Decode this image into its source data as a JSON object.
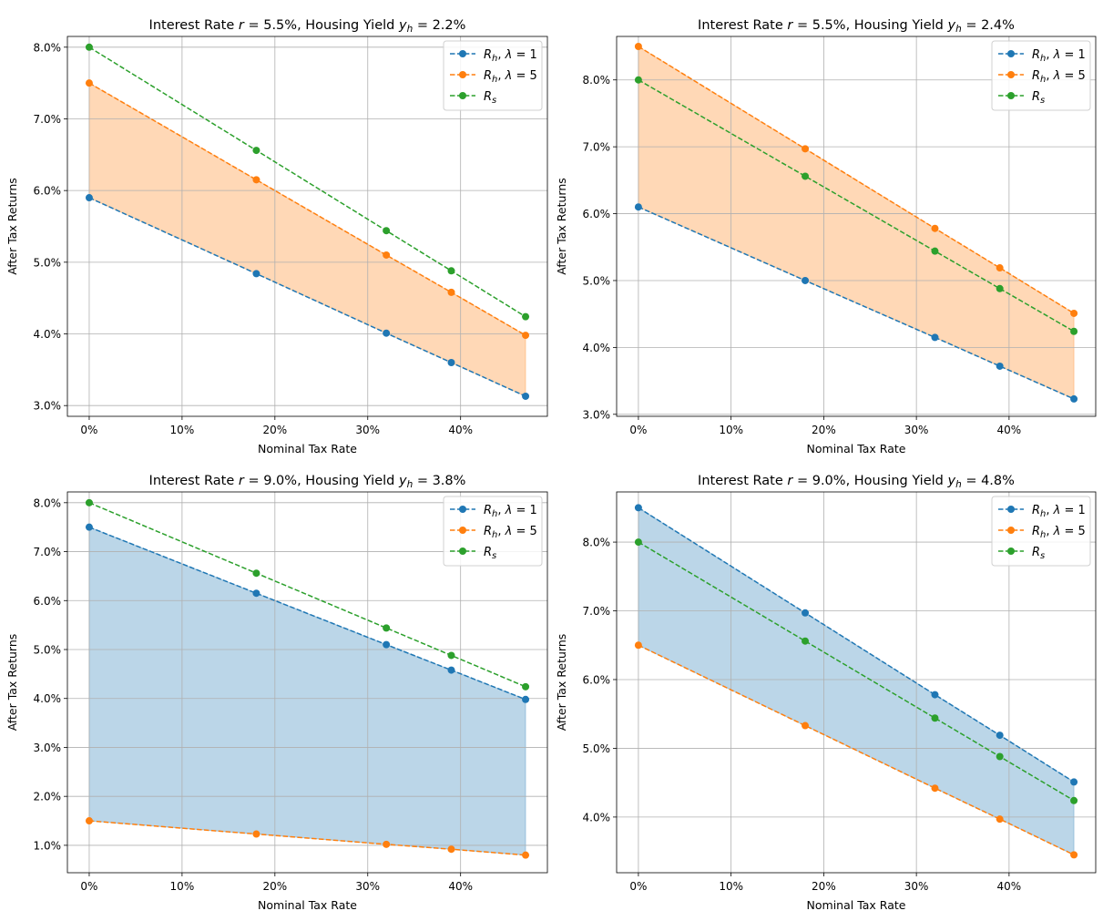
{
  "chart_data": [
    {
      "type": "line",
      "title": "Interest Rate r = 5.5%, Housing Yield y_h = 2.2%",
      "interest_rate": "5.5%",
      "housing_yield": "2.2%",
      "xlabel": "Nominal Tax Rate",
      "ylabel": "After Tax Returns",
      "x": [
        0,
        18,
        32,
        39,
        47
      ],
      "xlim": [
        -2.35,
        49.35
      ],
      "xticks": [
        "0%",
        "10%",
        "20%",
        "30%",
        "40%"
      ],
      "ylim": [
        2.85,
        8.15
      ],
      "yticks": [
        "3.0%",
        "4.0%",
        "5.0%",
        "6.0%",
        "7.0%",
        "8.0%"
      ],
      "grid": true,
      "legend": "top-right",
      "fill_between": "R_h, λ = 1 and R_h, λ = 5",
      "fill_color": "#ff7f0e",
      "series": [
        {
          "name": "R_h, λ = 1",
          "color": "#1f77b4",
          "values": [
            5.9,
            4.84,
            4.01,
            3.6,
            3.13
          ]
        },
        {
          "name": "R_h, λ = 5",
          "color": "#ff7f0e",
          "values": [
            7.5,
            6.15,
            5.1,
            4.58,
            3.98
          ]
        },
        {
          "name": "R_s",
          "color": "#2ca02c",
          "values": [
            8.0,
            6.56,
            5.44,
            4.88,
            4.24
          ]
        }
      ]
    },
    {
      "type": "line",
      "title": "Interest Rate r = 5.5%, Housing Yield y_h = 2.4%",
      "interest_rate": "5.5%",
      "housing_yield": "2.4%",
      "xlabel": "Nominal Tax Rate",
      "ylabel": "After Tax Returns",
      "x": [
        0,
        18,
        32,
        39,
        47
      ],
      "xlim": [
        -2.35,
        49.35
      ],
      "xticks": [
        "0%",
        "10%",
        "20%",
        "30%",
        "40%"
      ],
      "ylim": [
        2.97,
        8.65
      ],
      "yticks": [
        "3.0%",
        "4.0%",
        "5.0%",
        "6.0%",
        "7.0%",
        "8.0%"
      ],
      "grid": true,
      "legend": "top-right",
      "fill_between": "R_h, λ = 1 and R_h, λ = 5",
      "fill_color": "#ff7f0e",
      "series": [
        {
          "name": "R_h, λ = 1",
          "color": "#1f77b4",
          "values": [
            6.1,
            5.0,
            4.15,
            3.72,
            3.23
          ]
        },
        {
          "name": "R_h, λ = 5",
          "color": "#ff7f0e",
          "values": [
            8.5,
            6.97,
            5.78,
            5.19,
            4.51
          ]
        },
        {
          "name": "R_s",
          "color": "#2ca02c",
          "values": [
            8.0,
            6.56,
            5.44,
            4.88,
            4.24
          ]
        }
      ]
    },
    {
      "type": "line",
      "title": "Interest Rate r = 9.0%, Housing Yield y_h = 3.8%",
      "interest_rate": "9.0%",
      "housing_yield": "3.8%",
      "xlabel": "Nominal Tax Rate",
      "ylabel": "After Tax Returns",
      "x": [
        0,
        18,
        32,
        39,
        47
      ],
      "xlim": [
        -2.35,
        49.35
      ],
      "xticks": [
        "0%",
        "10%",
        "20%",
        "30%",
        "40%"
      ],
      "ylim": [
        0.44,
        8.22
      ],
      "yticks": [
        "1.0%",
        "2.0%",
        "3.0%",
        "4.0%",
        "5.0%",
        "6.0%",
        "7.0%",
        "8.0%"
      ],
      "grid": true,
      "legend": "top-right",
      "fill_between": "R_h, λ = 1 and R_h, λ = 5",
      "fill_color": "#1f77b4",
      "series": [
        {
          "name": "R_h, λ = 1",
          "color": "#1f77b4",
          "values": [
            7.5,
            6.15,
            5.1,
            4.58,
            3.98
          ]
        },
        {
          "name": "R_h, λ = 5",
          "color": "#ff7f0e",
          "values": [
            1.5,
            1.23,
            1.02,
            0.92,
            0.8
          ]
        },
        {
          "name": "R_s",
          "color": "#2ca02c",
          "values": [
            8.0,
            6.56,
            5.44,
            4.88,
            4.24
          ]
        }
      ]
    },
    {
      "type": "line",
      "title": "Interest Rate r = 9.0%, Housing Yield y_h = 4.8%",
      "interest_rate": "9.0%",
      "housing_yield": "4.8%",
      "xlabel": "Nominal Tax Rate",
      "ylabel": "After Tax Returns",
      "x": [
        0,
        18,
        32,
        39,
        47
      ],
      "xlim": [
        -2.35,
        49.35
      ],
      "xticks": [
        "0%",
        "10%",
        "20%",
        "30%",
        "40%"
      ],
      "ylim": [
        3.19,
        8.73
      ],
      "yticks": [
        "4.0%",
        "5.0%",
        "6.0%",
        "7.0%",
        "8.0%"
      ],
      "grid": true,
      "legend": "top-right",
      "fill_between": "R_h, λ = 1 and R_h, λ = 5",
      "fill_color": "#1f77b4",
      "series": [
        {
          "name": "R_h, λ = 1",
          "color": "#1f77b4",
          "values": [
            8.5,
            6.97,
            5.78,
            5.19,
            4.51
          ]
        },
        {
          "name": "R_h, λ = 5",
          "color": "#ff7f0e",
          "values": [
            6.5,
            5.33,
            4.42,
            3.97,
            3.45
          ]
        },
        {
          "name": "R_s",
          "color": "#2ca02c",
          "values": [
            8.0,
            6.56,
            5.44,
            4.88,
            4.24
          ]
        }
      ]
    }
  ]
}
